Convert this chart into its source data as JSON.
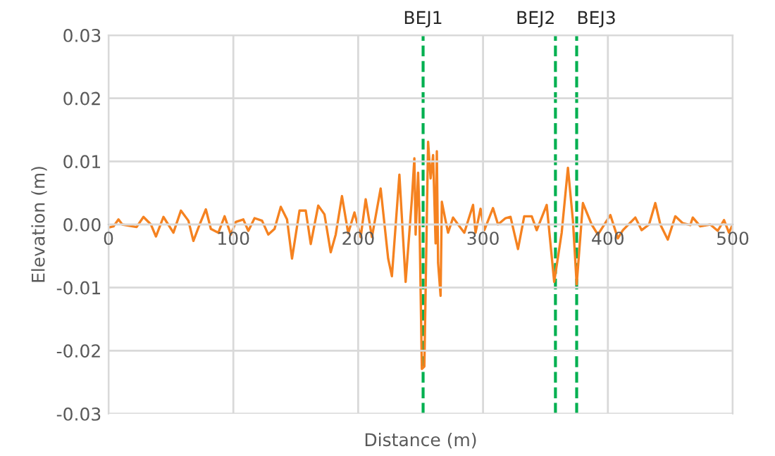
{
  "chart_data": {
    "type": "line",
    "xlabel": "Distance (m)",
    "ylabel": "Elevation (m)",
    "xlim": [
      0,
      500
    ],
    "xticks": [
      0,
      100,
      200,
      300,
      400,
      500
    ],
    "ylim": [
      -0.03,
      0.03
    ],
    "yticks": [
      {
        "value": -0.03,
        "label": "-0.03"
      },
      {
        "value": -0.02,
        "label": "-0.02"
      },
      {
        "value": -0.01,
        "label": "-0.01"
      },
      {
        "value": 0,
        "label": "0.00"
      },
      {
        "value": 0.01,
        "label": "0.01"
      },
      {
        "value": 0.02,
        "label": "0.02"
      },
      {
        "value": 0.03,
        "label": "0.03"
      }
    ],
    "grid": true,
    "marker": "none",
    "line_style": "solid",
    "series": [
      {
        "color": "#f58220",
        "x": [
          0,
          4,
          8,
          11,
          22.5,
          28,
          34,
          38,
          44,
          52,
          58,
          64,
          68,
          73,
          78,
          82,
          88,
          93,
          98,
          102,
          108,
          112,
          117,
          123,
          128,
          133,
          138,
          143,
          147,
          153,
          158,
          162,
          168,
          173,
          178,
          182,
          187,
          192,
          197,
          202,
          206,
          211,
          218,
          224,
          227,
          233,
          238,
          243,
          245,
          246,
          248,
          249,
          251,
          253,
          256,
          258,
          260,
          262,
          263,
          264,
          266,
          267,
          270,
          272,
          276,
          280,
          285,
          292,
          294,
          298,
          301,
          308,
          312,
          318,
          322,
          328,
          333,
          339,
          343,
          351,
          357,
          363,
          368,
          372,
          375,
          380,
          387,
          392,
          402,
          408,
          412,
          422,
          427,
          433,
          438,
          442,
          448,
          454,
          460,
          466,
          468,
          474,
          482,
          488,
          493,
          497,
          500
        ],
        "values": [
          -0.0005,
          -0.0003,
          0.0008,
          0.0,
          -0.0004,
          0.0012,
          0.0,
          -0.0019,
          0.0012,
          -0.0013,
          0.0022,
          0.0006,
          -0.0026,
          0.0,
          0.0024,
          -0.0007,
          -0.0013,
          0.0013,
          -0.0016,
          0.0004,
          0.0008,
          -0.001,
          0.001,
          0.0006,
          -0.0016,
          -0.0007,
          0.0028,
          0.0008,
          -0.0054,
          0.0022,
          0.0022,
          -0.0031,
          0.003,
          0.0016,
          -0.0044,
          -0.0016,
          0.0045,
          -0.0014,
          0.0019,
          -0.002,
          0.004,
          -0.002,
          0.0057,
          -0.0054,
          -0.0082,
          0.0079,
          -0.0091,
          0.004,
          0.0105,
          -0.0016,
          0.0082,
          0.002,
          -0.0229,
          -0.0225,
          0.0131,
          0.0073,
          0.011,
          -0.003,
          0.0116,
          -0.0061,
          -0.0113,
          0.0036,
          0.0006,
          -0.0013,
          0.0011,
          0.0,
          -0.0013,
          0.0031,
          -0.0013,
          0.0025,
          -0.0009,
          0.0026,
          0.0,
          0.001,
          0.0012,
          -0.0039,
          0.0013,
          0.0013,
          -0.0009,
          0.0031,
          -0.0091,
          -0.0013,
          0.009,
          0.0006,
          -0.0095,
          0.0034,
          0.0,
          -0.0016,
          0.0015,
          -0.0022,
          -0.0009,
          0.0011,
          -0.0009,
          0.0,
          0.0034,
          0.0,
          -0.0024,
          0.0013,
          0.0002,
          -0.0001,
          0.0011,
          -0.0003,
          0.0,
          -0.001,
          0.0007,
          -0.0013,
          0.0
        ]
      }
    ],
    "ref_lines": [
      {
        "axis": "x",
        "value": 252,
        "label": "BEJ1",
        "color": "#00b050",
        "line_style": "dashed"
      },
      {
        "axis": "x",
        "value": 358,
        "label": "BEJ2",
        "color": "#00b050",
        "line_style": "dashed"
      },
      {
        "axis": "x",
        "value": 375,
        "label": "BEJ3",
        "color": "#00b050",
        "line_style": "dashed"
      }
    ]
  }
}
